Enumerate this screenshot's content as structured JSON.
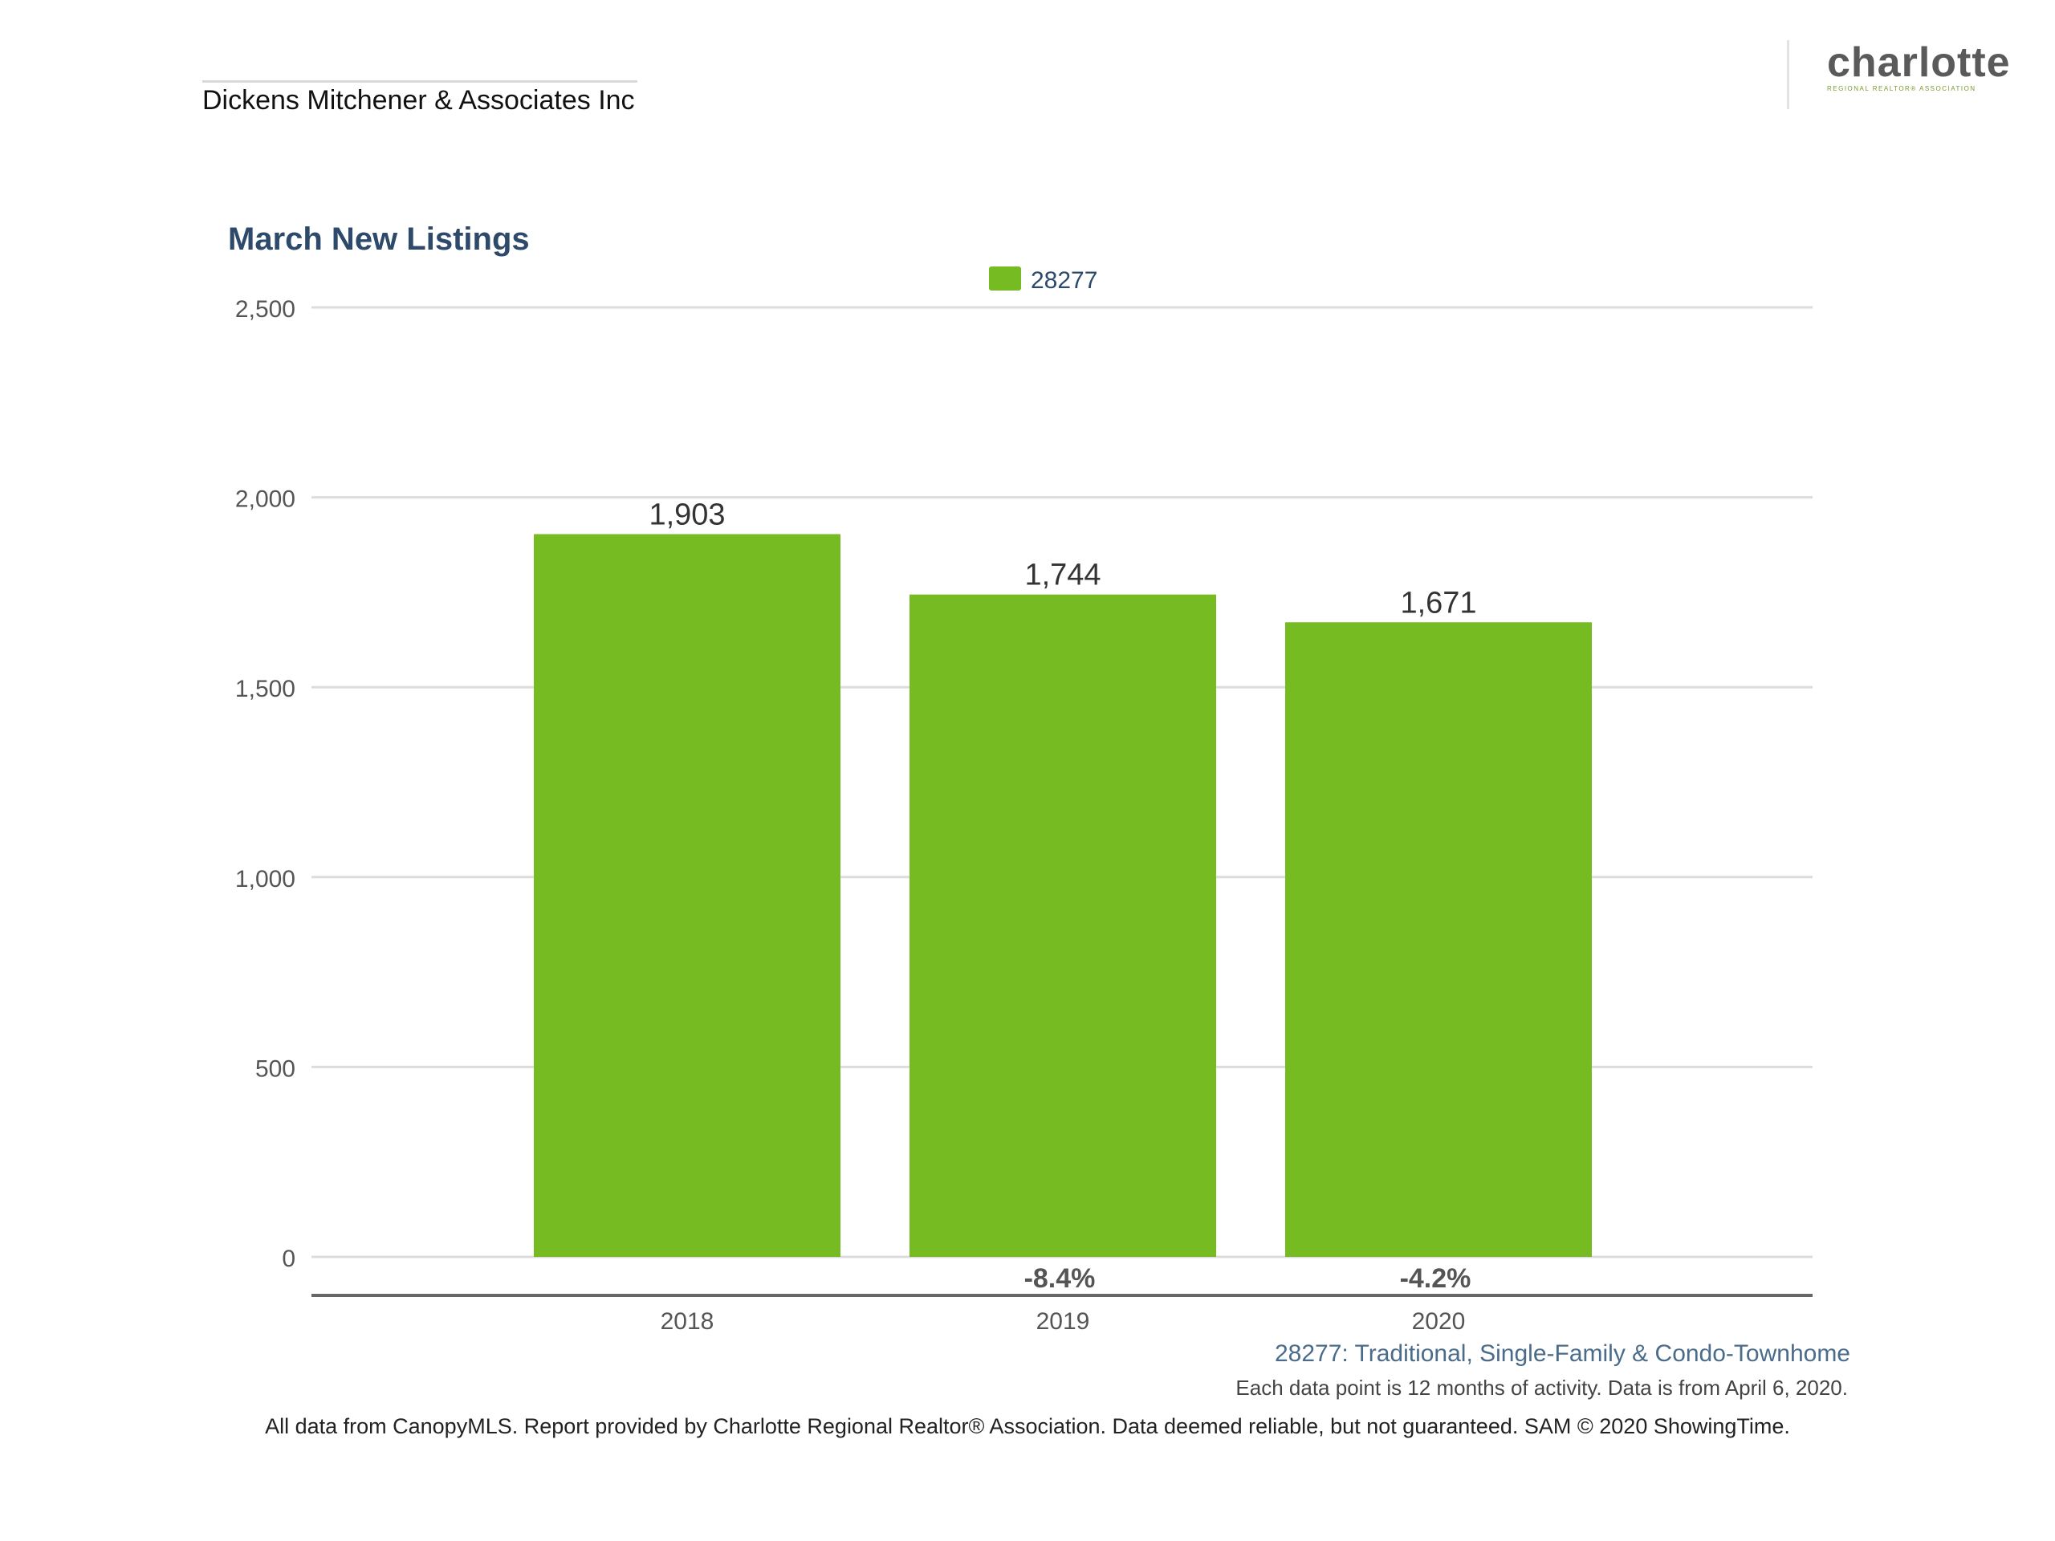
{
  "header": {
    "company": "Dickens Mitchener & Associates Inc",
    "logo_text": "charlotte",
    "logo_subtext": "REGIONAL REALTOR® ASSOCIATION"
  },
  "chart_data": {
    "type": "bar",
    "title": "March New Listings",
    "categories": [
      "2018",
      "2019",
      "2020"
    ],
    "series": [
      {
        "name": "28277",
        "values": [
          1903,
          1744,
          1671
        ],
        "value_labels": [
          "1,903",
          "1,744",
          "1,671"
        ]
      }
    ],
    "pct_change_labels": [
      "",
      "-8.4%",
      "-4.2%"
    ],
    "y_ticks": [
      0,
      500,
      1000,
      1500,
      2000,
      2500
    ],
    "y_tick_labels": [
      "0",
      "500",
      "1,000",
      "1,500",
      "2,000",
      "2,500"
    ],
    "ylim": [
      0,
      2500
    ],
    "xlabel": "",
    "ylabel": "",
    "grid": true,
    "legend": "top-center",
    "colors": {
      "bar": "#77bb22",
      "grid": "#dcdcdc",
      "axis": "#666666"
    }
  },
  "subtitle": "28277: Traditional, Single-Family & Condo-Townhome",
  "note": "Each data point is 12 months of activity. Data is from April 6, 2020.",
  "footer": "All data from CanopyMLS. Report provided by Charlotte Regional Realtor® Association. Data deemed reliable, but not guaranteed. SAM © 2020 ShowingTime."
}
